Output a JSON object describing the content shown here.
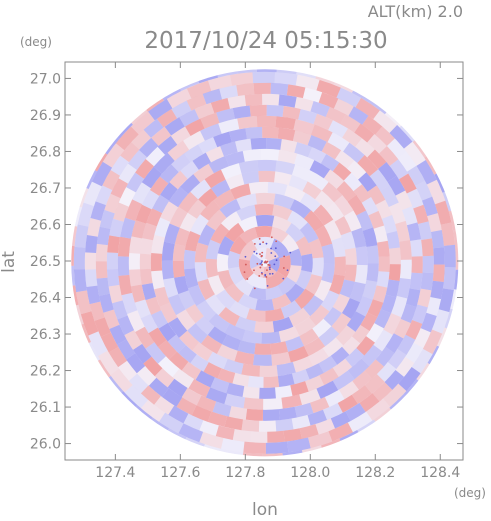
{
  "header": {
    "timestamp": "2017/10/24 05:15:30",
    "altitude": "ALT(km) 2.0"
  },
  "chart_data": {
    "type": "heatmap",
    "title": "2017/10/24 05:15:30",
    "subtitle": "ALT(km) 2.0",
    "xlabel": "lon",
    "ylabel": "lat",
    "x_unit": "(deg)",
    "y_unit": "(deg)",
    "xlim": [
      127.245,
      128.47
    ],
    "ylim": [
      25.955,
      27.045
    ],
    "x_ticks": [
      "127.4",
      "127.6",
      "127.8",
      "128.0",
      "128.2",
      "128.4"
    ],
    "x_tick_values": [
      127.4,
      127.6,
      127.8,
      128.0,
      128.2,
      128.4
    ],
    "y_ticks": [
      "26.0",
      "26.1",
      "26.2",
      "26.3",
      "26.4",
      "26.5",
      "26.6",
      "26.7",
      "26.8",
      "26.9",
      "27.0"
    ],
    "y_tick_values": [
      26.0,
      26.1,
      26.2,
      26.3,
      26.4,
      26.5,
      26.6,
      26.7,
      26.8,
      26.9,
      27.0
    ],
    "grid": false,
    "field_center": {
      "lon": 127.86,
      "lat": 26.495
    },
    "field_radius_deg_lat": 0.53,
    "colormap": {
      "negative": "#8f8ff0",
      "zero": "#ffffff",
      "positive": "#f08f8f"
    }
  }
}
